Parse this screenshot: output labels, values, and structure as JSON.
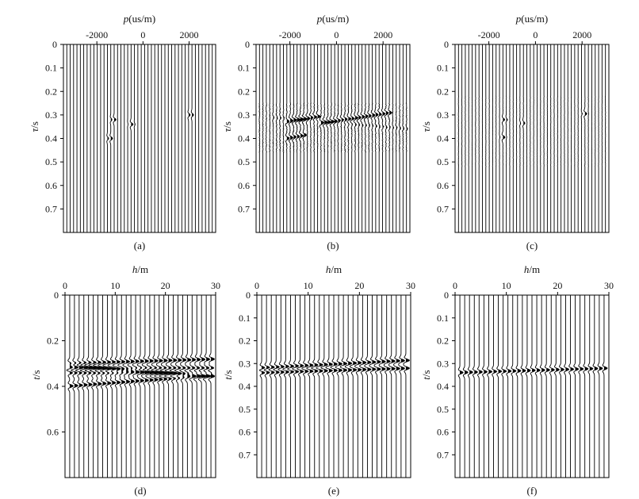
{
  "figure": {
    "chart_data": [
      {
        "type": "seismic-wiggle",
        "caption": "(a)",
        "xlabel": {
          "var": "p",
          "unit": "(us/m)"
        },
        "ylabel": {
          "var": "τ",
          "unit": "/s"
        },
        "xlim": [
          -3450,
          3150
        ],
        "ylim": [
          0,
          0.8
        ],
        "xticks": [
          {
            "value": -2000,
            "label": "-2000"
          },
          {
            "value": 0,
            "label": "0"
          },
          {
            "value": 2000,
            "label": "2000"
          }
        ],
        "yticks": [
          {
            "value": 0,
            "label": "0"
          },
          {
            "value": 0.1,
            "label": "0.1"
          },
          {
            "value": 0.2,
            "label": "0.2"
          },
          {
            "value": 0.3,
            "label": "0.3"
          },
          {
            "value": 0.4,
            "label": "0.4"
          },
          {
            "value": 0.5,
            "label": "0.5"
          },
          {
            "value": 0.6,
            "label": "0.6"
          },
          {
            "value": 0.7,
            "label": "0.7"
          }
        ],
        "trace_count": 44,
        "events": [
          {
            "x": -1300,
            "t": 0.32,
            "amp": 0.9
          },
          {
            "x": -1450,
            "t": 0.4,
            "amp": 0.9
          },
          {
            "x": -500,
            "t": 0.34,
            "amp": 0.8
          },
          {
            "x": 2050,
            "t": 0.3,
            "amp": 0.9
          }
        ],
        "noise": 0
      },
      {
        "type": "seismic-wiggle",
        "caption": "(b)",
        "xlabel": {
          "var": "p",
          "unit": "(us/m)"
        },
        "ylabel": {
          "var": "τ",
          "unit": "/s"
        },
        "xlim": [
          -3450,
          3150
        ],
        "ylim": [
          0,
          0.8
        ],
        "xticks": [
          {
            "value": -2000,
            "label": "-2000"
          },
          {
            "value": 0,
            "label": "0"
          },
          {
            "value": 2000,
            "label": "2000"
          }
        ],
        "yticks": [
          {
            "value": 0,
            "label": "0"
          },
          {
            "value": 0.1,
            "label": "0.1"
          },
          {
            "value": 0.2,
            "label": "0.2"
          },
          {
            "value": 0.3,
            "label": "0.3"
          },
          {
            "value": 0.4,
            "label": "0.4"
          },
          {
            "value": 0.5,
            "label": "0.5"
          },
          {
            "value": 0.6,
            "label": "0.6"
          },
          {
            "value": 0.7,
            "label": "0.7"
          }
        ],
        "trace_count": 44,
        "lines": [
          {
            "x": [
              -2250,
              -700
            ],
            "t": [
              0.33,
              0.305
            ],
            "amp": 1.1
          },
          {
            "x": [
              -700,
              2300
            ],
            "t": [
              0.335,
              0.29
            ],
            "amp": 1.0
          },
          {
            "x": [
              -2150,
              -1350
            ],
            "t": [
              0.4,
              0.385
            ],
            "amp": 1.0
          },
          {
            "x": [
              -2800,
              3100
            ],
            "t": [
              0.31,
              0.36
            ],
            "amp": 0.35
          }
        ],
        "noise": 0.14,
        "noise_band": [
          0.25,
          0.46
        ]
      },
      {
        "type": "seismic-wiggle",
        "caption": "(c)",
        "xlabel": {
          "var": "p",
          "unit": "(us/m)"
        },
        "ylabel": {
          "var": "τ",
          "unit": "/s"
        },
        "xlim": [
          -3450,
          3150
        ],
        "ylim": [
          0,
          0.8
        ],
        "xticks": [
          {
            "value": -2000,
            "label": "-2000"
          },
          {
            "value": 0,
            "label": "0"
          },
          {
            "value": 2000,
            "label": "2000"
          }
        ],
        "yticks": [
          {
            "value": 0,
            "label": "0"
          },
          {
            "value": 0.1,
            "label": "0.1"
          },
          {
            "value": 0.2,
            "label": "0.2"
          },
          {
            "value": 0.3,
            "label": "0.3"
          },
          {
            "value": 0.4,
            "label": "0.4"
          },
          {
            "value": 0.5,
            "label": "0.5"
          },
          {
            "value": 0.6,
            "label": "0.6"
          },
          {
            "value": 0.7,
            "label": "0.7"
          }
        ],
        "trace_count": 44,
        "events": [
          {
            "x": -1350,
            "t": 0.32,
            "amp": 0.8
          },
          {
            "x": -1400,
            "t": 0.395,
            "amp": 0.8
          },
          {
            "x": -550,
            "t": 0.335,
            "amp": 0.6
          },
          {
            "x": 2100,
            "t": 0.295,
            "amp": 0.8
          }
        ],
        "noise": 0.05,
        "noise_band": [
          0.22,
          0.52
        ]
      },
      {
        "type": "seismic-wiggle",
        "caption": "(d)",
        "xlabel": {
          "var": "h",
          "unit": "/m"
        },
        "ylabel": {
          "var": "t",
          "unit": "/s"
        },
        "xlim": [
          0,
          30
        ],
        "ylim": [
          0,
          0.8
        ],
        "xticks": [
          {
            "value": 0,
            "label": "0"
          },
          {
            "value": 10,
            "label": "10"
          },
          {
            "value": 20,
            "label": "20"
          },
          {
            "value": 30,
            "label": "30"
          }
        ],
        "yticks": [
          {
            "value": 0,
            "label": "0"
          },
          {
            "value": 0.2,
            "label": "0.2"
          },
          {
            "value": 0.4,
            "label": "0.4"
          },
          {
            "value": 0.6,
            "label": "0.6"
          }
        ],
        "trace_count": 31,
        "lines": [
          {
            "x": [
              0,
              30
            ],
            "t": [
              0.3,
              0.28
            ],
            "amp": 1.0
          },
          {
            "x": [
              0,
              30
            ],
            "t": [
              0.32,
              0.32
            ],
            "amp": 1.0
          },
          {
            "x": [
              0,
              30
            ],
            "t": [
              0.34,
              0.34
            ],
            "amp": 1.0
          },
          {
            "x": [
              0,
              30
            ],
            "t": [
              0.31,
              0.36
            ],
            "amp": 1.0
          },
          {
            "x": [
              0,
              30
            ],
            "t": [
              0.4,
              0.35
            ],
            "amp": 1.0
          }
        ],
        "noise": 0
      },
      {
        "type": "seismic-wiggle",
        "caption": "(e)",
        "xlabel": {
          "var": "h",
          "unit": "/m"
        },
        "ylabel": {
          "var": "t",
          "unit": "/s"
        },
        "xlim": [
          0,
          30
        ],
        "ylim": [
          0,
          0.8
        ],
        "xticks": [
          {
            "value": 0,
            "label": "0"
          },
          {
            "value": 10,
            "label": "10"
          },
          {
            "value": 20,
            "label": "20"
          },
          {
            "value": 30,
            "label": "30"
          }
        ],
        "yticks": [
          {
            "value": 0,
            "label": "0"
          },
          {
            "value": 0.1,
            "label": "0.1"
          },
          {
            "value": 0.2,
            "label": "0.2"
          },
          {
            "value": 0.3,
            "label": "0.3"
          },
          {
            "value": 0.4,
            "label": "0.4"
          },
          {
            "value": 0.5,
            "label": "0.5"
          },
          {
            "value": 0.6,
            "label": "0.6"
          },
          {
            "value": 0.7,
            "label": "0.7"
          }
        ],
        "trace_count": 31,
        "lines": [
          {
            "x": [
              0,
              30
            ],
            "t": [
              0.32,
              0.285
            ],
            "amp": 1.0
          },
          {
            "x": [
              0,
              30
            ],
            "t": [
              0.34,
              0.32
            ],
            "amp": 1.0
          }
        ],
        "noise": 0
      },
      {
        "type": "seismic-wiggle",
        "caption": "(f)",
        "xlabel": {
          "var": "h",
          "unit": "/m"
        },
        "ylabel": {
          "var": "t",
          "unit": "/s"
        },
        "xlim": [
          0,
          30
        ],
        "ylim": [
          0,
          0.8
        ],
        "xticks": [
          {
            "value": 0,
            "label": "0"
          },
          {
            "value": 10,
            "label": "10"
          },
          {
            "value": 20,
            "label": "20"
          },
          {
            "value": 30,
            "label": "30"
          }
        ],
        "yticks": [
          {
            "value": 0,
            "label": "0"
          },
          {
            "value": 0.1,
            "label": "0.1"
          },
          {
            "value": 0.2,
            "label": "0.2"
          },
          {
            "value": 0.3,
            "label": "0.3"
          },
          {
            "value": 0.4,
            "label": "0.4"
          },
          {
            "value": 0.5,
            "label": "0.5"
          },
          {
            "value": 0.6,
            "label": "0.6"
          },
          {
            "value": 0.7,
            "label": "0.7"
          }
        ],
        "trace_count": 31,
        "lines": [
          {
            "x": [
              0,
              30
            ],
            "t": [
              0.34,
              0.32
            ],
            "amp": 0.9
          }
        ],
        "noise": 0
      }
    ]
  }
}
